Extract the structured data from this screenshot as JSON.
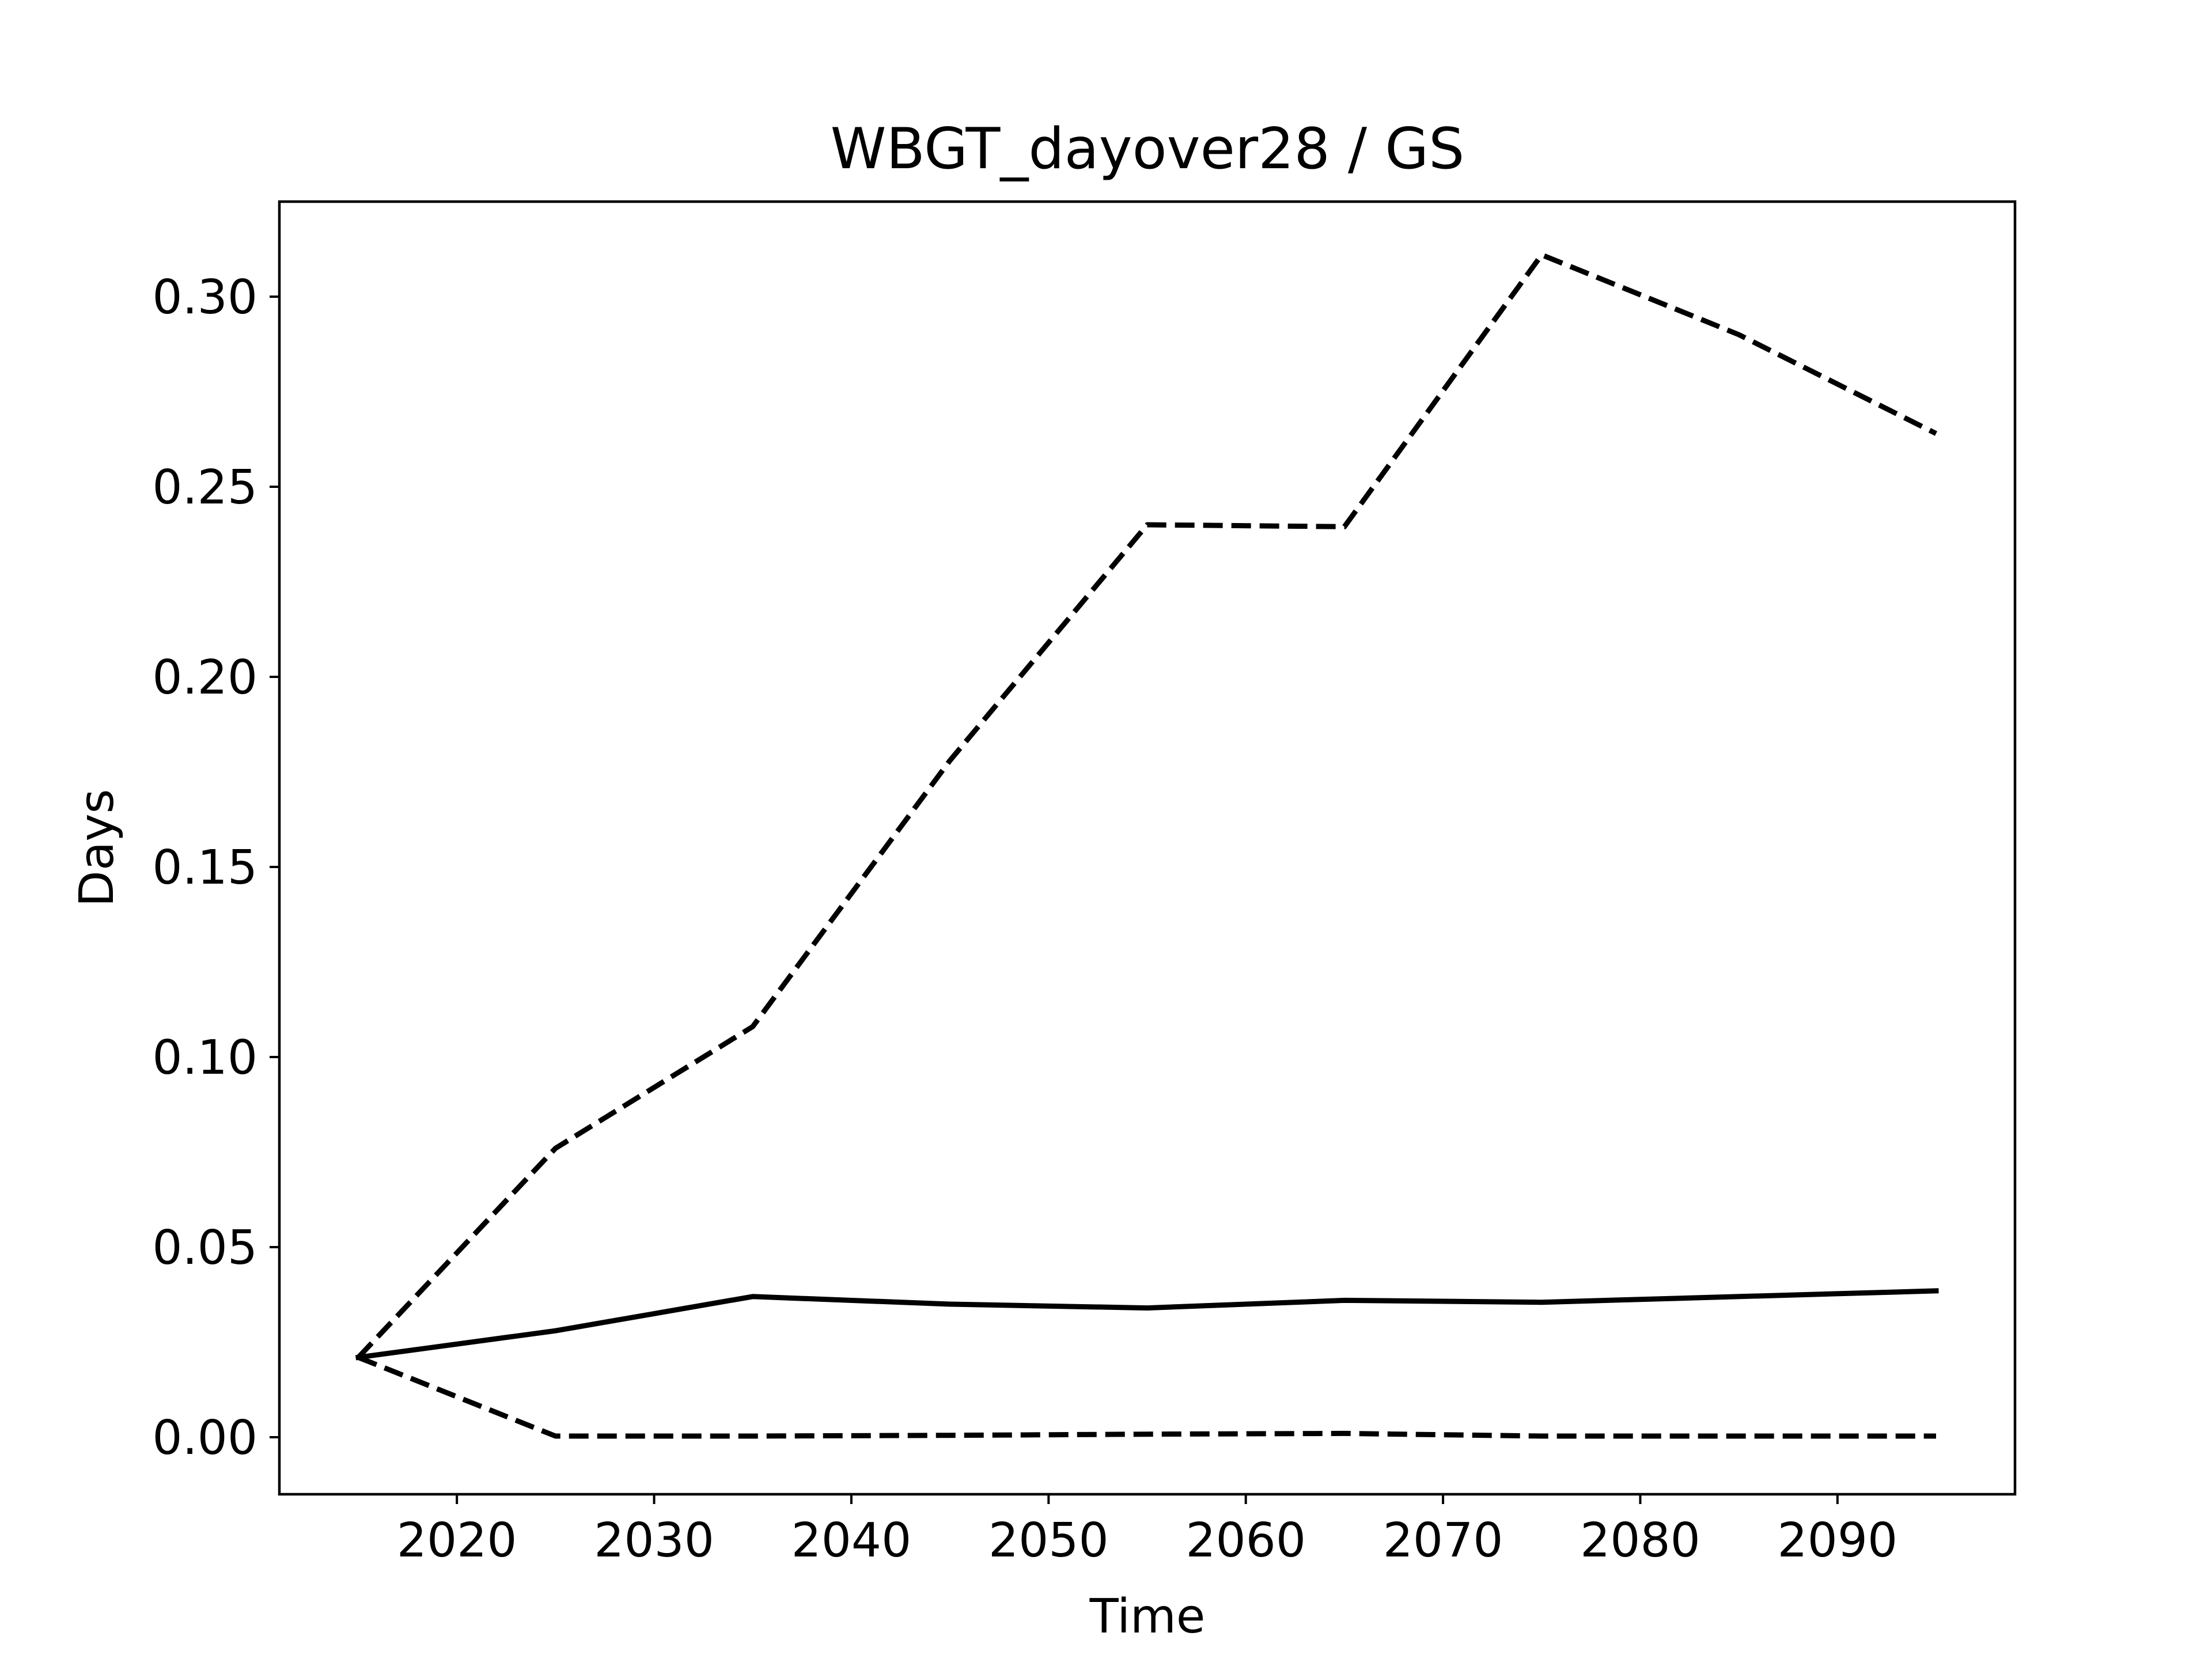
{
  "chart_data": {
    "type": "line",
    "title": "WBGT_dayover28 / GS",
    "xlabel": "Time",
    "ylabel": "Days",
    "xlim": [
      2011,
      2099
    ],
    "ylim": [
      -0.015,
      0.325
    ],
    "xticks": [
      2020,
      2030,
      2040,
      2050,
      2060,
      2070,
      2080,
      2090
    ],
    "xtick_labels": [
      "2020",
      "2030",
      "2040",
      "2050",
      "2060",
      "2070",
      "2080",
      "2090"
    ],
    "yticks": [
      0.0,
      0.05,
      0.1,
      0.15,
      0.2,
      0.25,
      0.3
    ],
    "ytick_labels": [
      "0.00",
      "0.05",
      "0.10",
      "0.15",
      "0.20",
      "0.25",
      "0.30"
    ],
    "grid": false,
    "legend": "none",
    "x": [
      2015,
      2025,
      2035,
      2045,
      2055,
      2065,
      2075,
      2085,
      2095
    ],
    "series": [
      {
        "style": "solid",
        "color": "#000000",
        "values": [
          0.021,
          0.028,
          0.037,
          0.035,
          0.034,
          0.036,
          0.0355,
          0.037,
          0.0385
        ]
      },
      {
        "style": "dashed",
        "color": "#000000",
        "values": [
          0.021,
          0.076,
          0.108,
          0.178,
          0.24,
          0.2395,
          0.311,
          0.29,
          0.264
        ]
      },
      {
        "style": "dashed",
        "color": "#000000",
        "values": [
          0.021,
          0.0003,
          0.0003,
          0.0005,
          0.0008,
          0.001,
          0.0003,
          0.0003,
          0.0003
        ]
      }
    ]
  }
}
